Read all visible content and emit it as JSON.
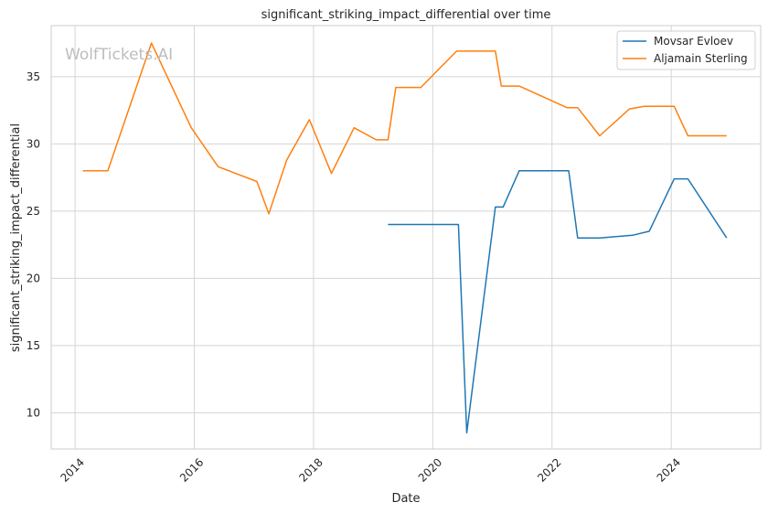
{
  "chart_data": {
    "type": "line",
    "title": "significant_striking_impact_differential over time",
    "xlabel": "Date",
    "ylabel": "significant_striking_impact_differential",
    "watermark": "WolfTickets.AI",
    "xlim": [
      2013.6,
      2025.5
    ],
    "ylim": [
      7.3,
      38.8
    ],
    "x_ticks": [
      2014,
      2016,
      2018,
      2020,
      2022,
      2024
    ],
    "x_tick_labels": [
      "2014",
      "2016",
      "2018",
      "2020",
      "2022",
      "2024"
    ],
    "y_ticks": [
      10,
      15,
      20,
      25,
      30,
      35
    ],
    "y_tick_labels": [
      "10",
      "15",
      "20",
      "25",
      "30",
      "35"
    ],
    "grid": true,
    "legend_position": "top-right",
    "series": [
      {
        "name": "Movsar Evloev",
        "color": "#1f77b4",
        "x": [
          2019.25,
          2020.1,
          2020.43,
          2020.57,
          2021.05,
          2021.18,
          2021.45,
          2022.0,
          2022.28,
          2022.43,
          2022.8,
          2023.35,
          2023.63,
          2024.05,
          2024.28,
          2024.93
        ],
        "y": [
          24.0,
          24.0,
          24.0,
          8.5,
          25.3,
          25.3,
          28.0,
          28.0,
          28.0,
          23.0,
          23.0,
          23.2,
          23.5,
          27.4,
          27.4,
          23.0
        ]
      },
      {
        "name": "Aljamain Sterling",
        "color": "#ff7f0e",
        "x": [
          2014.13,
          2014.55,
          2015.28,
          2015.95,
          2016.4,
          2017.05,
          2017.25,
          2017.55,
          2017.93,
          2018.3,
          2018.68,
          2019.05,
          2019.25,
          2019.38,
          2019.8,
          2020.4,
          2021.05,
          2021.15,
          2021.45,
          2022.25,
          2022.43,
          2022.8,
          2023.3,
          2023.55,
          2024.05,
          2024.28,
          2024.93
        ],
        "y": [
          28.0,
          28.0,
          37.5,
          31.2,
          28.3,
          27.2,
          24.8,
          28.8,
          31.8,
          27.8,
          31.2,
          30.3,
          30.3,
          34.2,
          34.2,
          36.9,
          36.9,
          34.3,
          34.3,
          32.7,
          32.7,
          30.6,
          32.6,
          32.8,
          32.8,
          30.6,
          30.6
        ]
      }
    ]
  }
}
